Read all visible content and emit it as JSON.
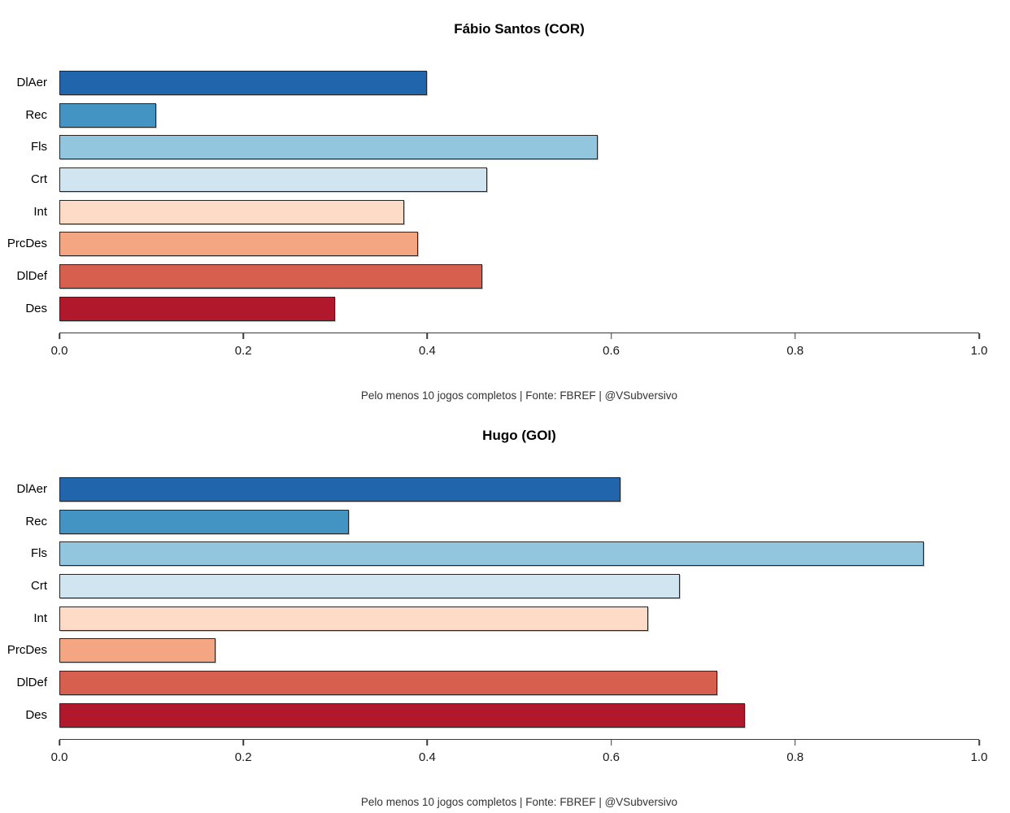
{
  "chart_data": [
    {
      "type": "bar",
      "orientation": "horizontal",
      "title": "Fábio Santos (COR)",
      "caption": "Pelo menos 10 jogos completos | Fonte: FBREF | @VSubversivo",
      "categories": [
        "DlAer",
        "Rec",
        "Fls",
        "Crt",
        "Int",
        "PrcDes",
        "DlDef",
        "Des"
      ],
      "values": [
        0.4,
        0.105,
        0.585,
        0.465,
        0.375,
        0.39,
        0.46,
        0.3
      ],
      "bar_colors": [
        "#2166AC",
        "#4393C3",
        "#92C5DE",
        "#D1E5F0",
        "#FDDBC7",
        "#F4A582",
        "#D6604D",
        "#B2182B"
      ],
      "bar_border_color": "#262626",
      "xlim": [
        0.0,
        1.0
      ],
      "x_ticks": [
        0.0,
        0.2,
        0.4,
        0.6,
        0.8,
        1.0
      ],
      "x_tick_labels": [
        "0.0",
        "0.2",
        "0.4",
        "0.6",
        "0.8",
        "1.0"
      ],
      "xlabel": "",
      "ylabel": "",
      "grid": false,
      "legend": false
    },
    {
      "type": "bar",
      "orientation": "horizontal",
      "title": "Hugo (GOI)",
      "caption": "Pelo menos 10 jogos completos | Fonte: FBREF | @VSubversivo",
      "categories": [
        "DlAer",
        "Rec",
        "Fls",
        "Crt",
        "Int",
        "PrcDes",
        "DlDef",
        "Des"
      ],
      "values": [
        0.61,
        0.315,
        0.94,
        0.675,
        0.64,
        0.17,
        0.715,
        0.745
      ],
      "bar_colors": [
        "#2166AC",
        "#4393C3",
        "#92C5DE",
        "#D1E5F0",
        "#FDDBC7",
        "#F4A582",
        "#D6604D",
        "#B2182B"
      ],
      "bar_border_color": "#262626",
      "xlim": [
        0.0,
        1.0
      ],
      "x_ticks": [
        0.0,
        0.2,
        0.4,
        0.6,
        0.8,
        1.0
      ],
      "x_tick_labels": [
        "0.0",
        "0.2",
        "0.4",
        "0.6",
        "0.8",
        "1.0"
      ],
      "xlabel": "",
      "ylabel": "",
      "grid": false,
      "legend": false
    }
  ]
}
